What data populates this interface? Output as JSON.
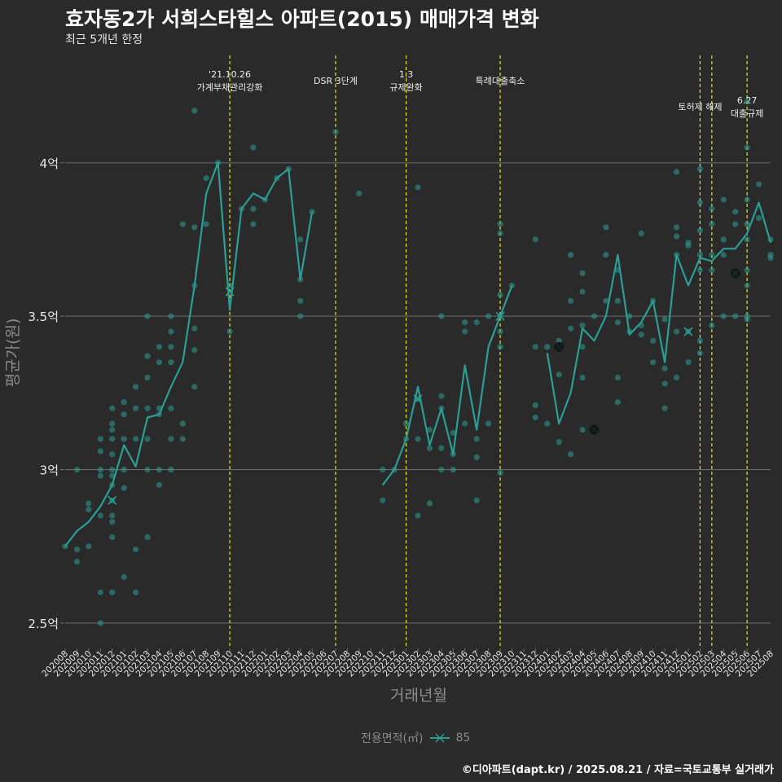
{
  "title": "효자동2가 서희스타힐스 아파트(2015) 매매가격 변화",
  "subtitle": "최근 5개년 한정",
  "caption": "©디아파트(dapt.kr) / 2025.08.21 / 자료=국토교통부 실거래가",
  "colors": {
    "background": "#2b2a2b",
    "series": "#2a9d94",
    "vline": "#e6e600",
    "grid": "#6e6e6e",
    "axis_text": "#8c8c8c"
  },
  "chart_data": {
    "type": "line",
    "xlabel": "거래년월",
    "ylabel": "평균가(원)",
    "x": [
      "202008",
      "202009",
      "202010",
      "202011",
      "202012",
      "202101",
      "202102",
      "202103",
      "202104",
      "202105",
      "202106",
      "202107",
      "202108",
      "202109",
      "202110",
      "202111",
      "202112",
      "202201",
      "202202",
      "202203",
      "202204",
      "202205",
      "202206",
      "202207",
      "202208",
      "202209",
      "202210",
      "202211",
      "202212",
      "202301",
      "202302",
      "202303",
      "202304",
      "202305",
      "202306",
      "202307",
      "202308",
      "202309",
      "202310",
      "202311",
      "202312",
      "202401",
      "202402",
      "202403",
      "202404",
      "202405",
      "202406",
      "202407",
      "202408",
      "202409",
      "202410",
      "202411",
      "202412",
      "202501",
      "202502",
      "202503",
      "202504",
      "202505",
      "202506",
      "202507",
      "202508"
    ],
    "ylim": [
      2.42,
      4.35
    ],
    "yticks": [
      {
        "value": 2.5,
        "label": "2.5억"
      },
      {
        "value": 3.0,
        "label": "3억"
      },
      {
        "value": 3.5,
        "label": "3.5억"
      },
      {
        "value": 4.0,
        "label": "4억"
      }
    ],
    "grid": "horizontal",
    "legend": {
      "position": "bottom",
      "title": "전용면적(㎡)",
      "entries": [
        "85"
      ]
    },
    "series": [
      {
        "name": "85",
        "note_gaps": "null = no transaction that month",
        "values": [
          2.75,
          2.8,
          2.83,
          2.88,
          2.95,
          3.08,
          3.01,
          3.17,
          3.18,
          3.27,
          3.35,
          3.6,
          3.9,
          4.0,
          3.52,
          3.85,
          3.9,
          3.88,
          3.95,
          3.98,
          3.62,
          3.84,
          null,
          null,
          null,
          null,
          null,
          2.95,
          3.0,
          3.1,
          3.27,
          3.08,
          3.2,
          3.05,
          3.34,
          3.13,
          3.4,
          3.5,
          3.6,
          null,
          null,
          3.38,
          3.15,
          3.25,
          3.46,
          3.42,
          3.5,
          3.7,
          3.44,
          3.48,
          3.55,
          3.35,
          3.7,
          3.6,
          3.69,
          3.68,
          3.72,
          3.72,
          3.77,
          3.87,
          3.74
        ]
      }
    ],
    "scatter": [
      [
        "202008",
        2.75
      ],
      [
        "202009",
        3.0
      ],
      [
        "202009",
        2.74
      ],
      [
        "202009",
        2.7
      ],
      [
        "202010",
        2.75
      ],
      [
        "202010",
        2.87
      ],
      [
        "202010",
        2.89
      ],
      [
        "202011",
        3.1
      ],
      [
        "202011",
        3.06
      ],
      [
        "202011",
        3.0
      ],
      [
        "202011",
        2.98
      ],
      [
        "202011",
        2.85
      ],
      [
        "202011",
        2.6
      ],
      [
        "202011",
        2.5
      ],
      [
        "202012",
        3.2
      ],
      [
        "202012",
        3.15
      ],
      [
        "202012",
        3.13
      ],
      [
        "202012",
        3.1
      ],
      [
        "202012",
        3.05
      ],
      [
        "202012",
        3.0
      ],
      [
        "202012",
        2.98
      ],
      [
        "202012",
        2.95
      ],
      [
        "202012",
        2.9
      ],
      [
        "202012",
        2.85
      ],
      [
        "202012",
        2.83
      ],
      [
        "202012",
        2.78
      ],
      [
        "202012",
        2.6
      ],
      [
        "202101",
        3.22
      ],
      [
        "202101",
        3.18
      ],
      [
        "202101",
        3.1
      ],
      [
        "202101",
        3.0
      ],
      [
        "202101",
        2.94
      ],
      [
        "202101",
        2.65
      ],
      [
        "202102",
        3.27
      ],
      [
        "202102",
        3.2
      ],
      [
        "202102",
        3.1
      ],
      [
        "202102",
        2.74
      ],
      [
        "202102",
        2.6
      ],
      [
        "202103",
        3.5
      ],
      [
        "202103",
        3.37
      ],
      [
        "202103",
        3.3
      ],
      [
        "202103",
        3.2
      ],
      [
        "202103",
        3.1
      ],
      [
        "202103",
        3.0
      ],
      [
        "202103",
        2.78
      ],
      [
        "202104",
        3.4
      ],
      [
        "202104",
        3.35
      ],
      [
        "202104",
        3.2
      ],
      [
        "202104",
        3.18
      ],
      [
        "202104",
        3.0
      ],
      [
        "202104",
        2.95
      ],
      [
        "202105",
        3.5
      ],
      [
        "202105",
        3.45
      ],
      [
        "202105",
        3.4
      ],
      [
        "202105",
        3.35
      ],
      [
        "202105",
        3.2
      ],
      [
        "202105",
        3.1
      ],
      [
        "202105",
        3.0
      ],
      [
        "202106",
        3.8
      ],
      [
        "202106",
        3.15
      ],
      [
        "202106",
        3.1
      ],
      [
        "202107",
        4.17
      ],
      [
        "202107",
        3.79
      ],
      [
        "202107",
        3.6
      ],
      [
        "202107",
        3.46
      ],
      [
        "202107",
        3.39
      ],
      [
        "202107",
        3.27
      ],
      [
        "202108",
        3.95
      ],
      [
        "202108",
        3.8
      ],
      [
        "202109",
        4.0
      ],
      [
        "202110",
        3.6
      ],
      [
        "202110",
        3.45
      ],
      [
        "202111",
        3.85
      ],
      [
        "202112",
        4.05
      ],
      [
        "202112",
        3.85
      ],
      [
        "202112",
        3.8
      ],
      [
        "202201",
        3.88
      ],
      [
        "202202",
        3.95
      ],
      [
        "202203",
        3.98
      ],
      [
        "202204",
        3.75
      ],
      [
        "202204",
        3.62
      ],
      [
        "202204",
        3.55
      ],
      [
        "202204",
        3.5
      ],
      [
        "202205",
        3.84
      ],
      [
        "202207",
        4.1
      ],
      [
        "202209",
        3.9
      ],
      [
        "202211",
        3.0
      ],
      [
        "202211",
        2.9
      ],
      [
        "202212",
        3.0
      ],
      [
        "202301",
        3.15
      ],
      [
        "202301",
        3.1
      ],
      [
        "202302",
        3.92
      ],
      [
        "202302",
        3.23
      ],
      [
        "202302",
        3.1
      ],
      [
        "202302",
        2.85
      ],
      [
        "202303",
        3.13
      ],
      [
        "202303",
        3.07
      ],
      [
        "202303",
        2.89
      ],
      [
        "202304",
        3.5
      ],
      [
        "202304",
        3.24
      ],
      [
        "202304",
        3.2
      ],
      [
        "202304",
        3.07
      ],
      [
        "202304",
        3.0
      ],
      [
        "202305",
        3.12
      ],
      [
        "202305",
        3.05
      ],
      [
        "202305",
        3.0
      ],
      [
        "202306",
        3.48
      ],
      [
        "202306",
        3.45
      ],
      [
        "202306",
        3.15
      ],
      [
        "202307",
        3.48
      ],
      [
        "202307",
        3.1
      ],
      [
        "202307",
        3.04
      ],
      [
        "202307",
        2.9
      ],
      [
        "202308",
        3.5
      ],
      [
        "202308",
        3.15
      ],
      [
        "202309",
        3.8
      ],
      [
        "202309",
        3.77
      ],
      [
        "202309",
        3.57
      ],
      [
        "202309",
        3.5
      ],
      [
        "202309",
        3.45
      ],
      [
        "202309",
        3.4
      ],
      [
        "202309",
        2.99
      ],
      [
        "202310",
        3.6
      ],
      [
        "202312",
        3.75
      ],
      [
        "202312",
        3.4
      ],
      [
        "202312",
        3.21
      ],
      [
        "202312",
        3.17
      ],
      [
        "202401",
        3.4
      ],
      [
        "202401",
        3.15
      ],
      [
        "202402",
        3.42
      ],
      [
        "202402",
        3.31
      ],
      [
        "202402",
        3.09
      ],
      [
        "202403",
        3.7
      ],
      [
        "202403",
        3.55
      ],
      [
        "202403",
        3.46
      ],
      [
        "202403",
        3.05
      ],
      [
        "202404",
        3.64
      ],
      [
        "202404",
        3.58
      ],
      [
        "202404",
        3.47
      ],
      [
        "202404",
        3.4
      ],
      [
        "202404",
        3.3
      ],
      [
        "202404",
        3.13
      ],
      [
        "202405",
        3.5
      ],
      [
        "202406",
        3.79
      ],
      [
        "202406",
        3.7
      ],
      [
        "202406",
        3.55
      ],
      [
        "202407",
        3.65
      ],
      [
        "202407",
        3.55
      ],
      [
        "202407",
        3.48
      ],
      [
        "202407",
        3.3
      ],
      [
        "202407",
        3.22
      ],
      [
        "202408",
        3.5
      ],
      [
        "202408",
        3.45
      ],
      [
        "202409",
        3.77
      ],
      [
        "202409",
        3.47
      ],
      [
        "202409",
        3.44
      ],
      [
        "202410",
        3.55
      ],
      [
        "202410",
        3.42
      ],
      [
        "202410",
        3.35
      ],
      [
        "202411",
        3.49
      ],
      [
        "202411",
        3.33
      ],
      [
        "202411",
        3.28
      ],
      [
        "202411",
        3.2
      ],
      [
        "202412",
        3.97
      ],
      [
        "202412",
        3.79
      ],
      [
        "202412",
        3.76
      ],
      [
        "202412",
        3.7
      ],
      [
        "202412",
        3.45
      ],
      [
        "202412",
        3.3
      ],
      [
        "202501",
        3.74
      ],
      [
        "202501",
        3.73
      ],
      [
        "202501",
        3.45
      ],
      [
        "202501",
        3.35
      ],
      [
        "202502",
        3.98
      ],
      [
        "202502",
        3.87
      ],
      [
        "202502",
        3.78
      ],
      [
        "202502",
        3.7
      ],
      [
        "202502",
        3.65
      ],
      [
        "202502",
        3.42
      ],
      [
        "202502",
        3.38
      ],
      [
        "202503",
        3.85
      ],
      [
        "202503",
        3.8
      ],
      [
        "202503",
        3.7
      ],
      [
        "202503",
        3.65
      ],
      [
        "202503",
        3.47
      ],
      [
        "202504",
        3.88
      ],
      [
        "202504",
        3.75
      ],
      [
        "202504",
        3.7
      ],
      [
        "202504",
        3.5
      ],
      [
        "202505",
        3.84
      ],
      [
        "202505",
        3.8
      ],
      [
        "202505",
        3.64
      ],
      [
        "202505",
        3.5
      ],
      [
        "202506",
        4.2
      ],
      [
        "202506",
        4.05
      ],
      [
        "202506",
        3.88
      ],
      [
        "202506",
        3.8
      ],
      [
        "202506",
        3.75
      ],
      [
        "202506",
        3.65
      ],
      [
        "202506",
        3.6
      ],
      [
        "202506",
        3.5
      ],
      [
        "202506",
        3.49
      ],
      [
        "202507",
        3.93
      ],
      [
        "202507",
        3.82
      ],
      [
        "202508",
        3.75
      ],
      [
        "202508",
        3.7
      ],
      [
        "202508",
        3.69
      ]
    ],
    "highlights": [
      [
        "202012",
        2.9,
        "light"
      ],
      [
        "202110",
        3.58,
        "light"
      ],
      [
        "202302",
        3.23,
        "light"
      ],
      [
        "202309",
        3.5,
        "light"
      ],
      [
        "202501",
        3.45,
        "light"
      ],
      [
        "202402",
        3.4,
        "dark"
      ],
      [
        "202405",
        3.13,
        "dark"
      ],
      [
        "202505",
        3.64,
        "dark"
      ]
    ],
    "events": [
      {
        "x": "202110",
        "lines": [
          "'21.10.26",
          "가계부채관리강화"
        ],
        "level": 0
      },
      {
        "x": "202207",
        "lines": [
          "DSR 3단계"
        ],
        "level": 2
      },
      {
        "x": "202301",
        "lines": [
          "1.3",
          "규제완화"
        ],
        "level": 0
      },
      {
        "x": "202309",
        "lines": [
          "특례대출축소"
        ],
        "level": 2
      },
      {
        "x": "202502",
        "lines": [
          "토허제 해제"
        ],
        "level": 1
      },
      {
        "x": "202503",
        "lines": [],
        "level": 1
      },
      {
        "x": "202506",
        "lines": [
          "6.27",
          "대출규제"
        ],
        "level": 3
      }
    ]
  }
}
